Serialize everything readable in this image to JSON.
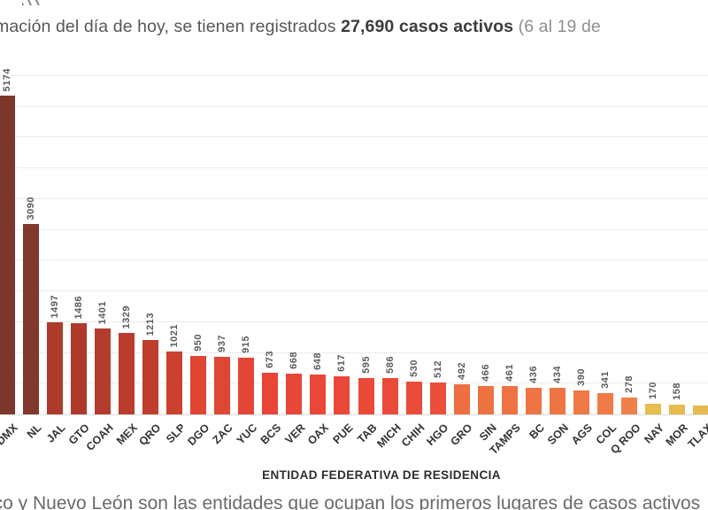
{
  "header": {
    "text_prefix": "mación del día de hoy, se tienen registrados ",
    "highlight": "27,690 casos activos",
    "text_suffix": " (6 al 19 de"
  },
  "chart_data": {
    "type": "bar",
    "title": "",
    "xlabel": "ENTIDAD FEDERATIVA DE RESIDENCIA",
    "ylabel": "",
    "ylim": [
      0,
      5800
    ],
    "grid": "horizontal-light-gray, unlabeled, step 500",
    "legend": "none",
    "categories": [
      "CDMX",
      "NL",
      "JAL",
      "GTO",
      "COAH",
      "MEX",
      "QRO",
      "SLP",
      "DGO",
      "ZAC",
      "YUC",
      "BCS",
      "VER",
      "OAX",
      "PUE",
      "TAB",
      "MICH",
      "CHIH",
      "HGO",
      "GRO",
      "SIN",
      "TAMPS",
      "BC",
      "SON",
      "AGS",
      "COL",
      "Q ROO",
      "NAY",
      "MOR",
      "TLAX"
    ],
    "values": [
      5174,
      3090,
      1497,
      1486,
      1401,
      1329,
      1213,
      1021,
      950,
      937,
      915,
      673,
      668,
      648,
      617,
      595,
      586,
      530,
      512,
      492,
      466,
      461,
      436,
      434,
      390,
      341,
      278,
      170,
      158,
      150
    ],
    "value_labels": [
      "5174",
      "3090",
      "1497",
      "1486",
      "1401",
      "1329",
      "1213",
      "1021",
      "950",
      "937",
      "915",
      "673",
      "668",
      "648",
      "617",
      "595",
      "586",
      "530",
      "512",
      "492",
      "466",
      "461",
      "436",
      "434",
      "390",
      "341",
      "278",
      "170",
      "158",
      ""
    ],
    "bar_colors": [
      "#7c372a",
      "#81392b",
      "#ae3a2c",
      "#af3a2c",
      "#b53b2d",
      "#ba3c2d",
      "#c03d2e",
      "#cc402f",
      "#de4533",
      "#e04634",
      "#e24735",
      "#e84538",
      "#e84638",
      "#e94738",
      "#e94838",
      "#ea4938",
      "#ea4a39",
      "#eb4c39",
      "#eb4e3a",
      "#ed6f41",
      "#ed7242",
      "#ee7342",
      "#ee7543",
      "#ee7543",
      "#ef7844",
      "#ef7c46",
      "#f08048",
      "#e7bd4e",
      "#e6bc4f",
      "#e5bb50"
    ],
    "clipping_notes": "first bar and its axis label are cut off at the left edge; last bar (TLAX) is cut off at the right edge and its numeric label is not visible"
  },
  "footer": {
    "text_fragment": "ico y Nuevo León son las entidades que ocupan los primeros lugares de casos activos"
  }
}
